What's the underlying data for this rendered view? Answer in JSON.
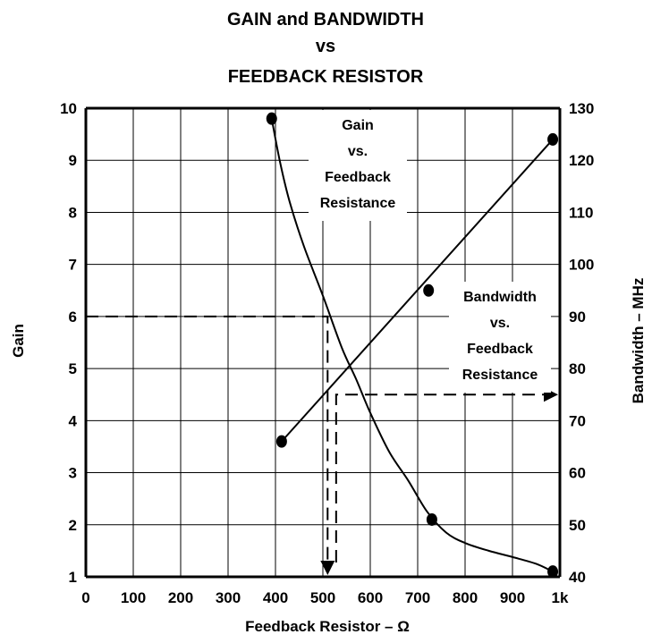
{
  "chart_data": {
    "type": "line",
    "title_lines": [
      "GAIN and BANDWIDTH",
      "vs",
      "FEEDBACK RESISTOR"
    ],
    "xlabel": "Feedback Resistor – Ω",
    "ylabel_left": "Gain",
    "ylabel_right": "Bandwidth – MHz",
    "xlim": [
      0,
      1000
    ],
    "ylim_left": [
      1,
      10
    ],
    "ylim_right": [
      40,
      130
    ],
    "grid": true,
    "x_ticks": [
      0,
      100,
      200,
      300,
      400,
      500,
      600,
      700,
      800,
      900,
      1000
    ],
    "x_tick_labels": [
      "0",
      "100",
      "200",
      "300",
      "400",
      "500",
      "600",
      "700",
      "800",
      "900",
      "1k"
    ],
    "y_left_ticks": [
      1,
      2,
      3,
      4,
      5,
      6,
      7,
      8,
      9,
      10
    ],
    "y_left_tick_labels": [
      "1",
      "2",
      "3",
      "4",
      "5",
      "6",
      "7",
      "8",
      "9",
      "10"
    ],
    "y_right_ticks": [
      40,
      50,
      60,
      70,
      80,
      90,
      100,
      110,
      120,
      130
    ],
    "y_right_tick_labels": [
      "40",
      "50",
      "60",
      "70",
      "80",
      "90",
      "100",
      "110",
      "120",
      "130"
    ],
    "series": [
      {
        "axis": "left",
        "curve": [
          [
            392,
            9.8
          ],
          [
            410,
            8.95
          ],
          [
            430,
            8.2
          ],
          [
            460,
            7.35
          ],
          [
            500,
            6.4
          ],
          [
            540,
            5.4
          ],
          [
            570,
            4.8
          ],
          [
            600,
            4.15
          ],
          [
            640,
            3.4
          ],
          [
            680,
            2.85
          ],
          [
            720,
            2.25
          ],
          [
            760,
            1.85
          ],
          [
            800,
            1.65
          ],
          [
            850,
            1.5
          ],
          [
            900,
            1.38
          ],
          [
            950,
            1.25
          ],
          [
            985,
            1.1
          ]
        ],
        "points": [
          [
            392,
            9.8
          ],
          [
            730,
            2.1
          ],
          [
            985,
            1.1
          ]
        ]
      },
      {
        "axis": "right",
        "curve": [
          [
            413,
            66
          ],
          [
            985,
            124
          ]
        ],
        "points": [
          [
            413,
            66
          ],
          [
            723,
            95
          ],
          [
            985,
            124
          ]
        ]
      }
    ],
    "annotations": {
      "gain_label": [
        "Gain",
        "vs.",
        "Feedback",
        "Resistance"
      ],
      "bandwidth_label": [
        "Bandwidth",
        "vs.",
        "Feedback",
        "Resistance"
      ],
      "gain_reference": {
        "gain": 6,
        "resistor": 510
      },
      "bandwidth_reference": {
        "bandwidth_mhz": 75,
        "resistor": 528
      }
    }
  }
}
